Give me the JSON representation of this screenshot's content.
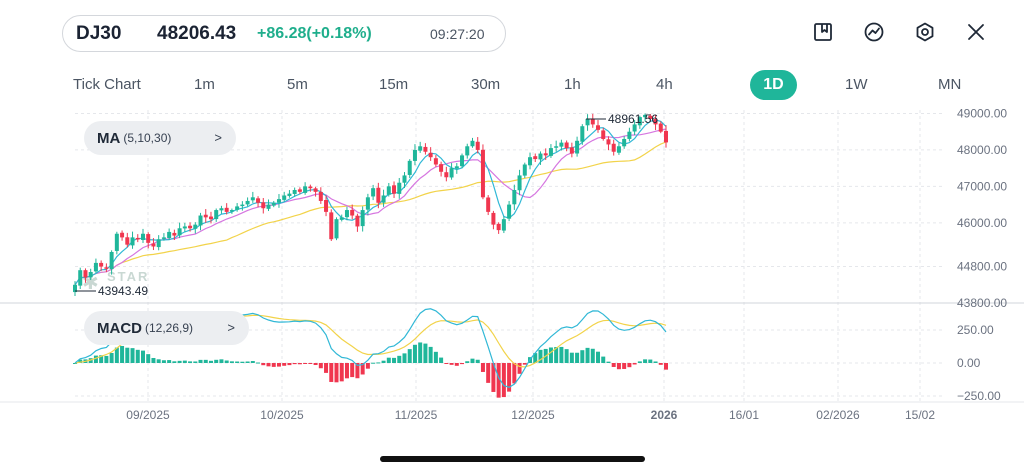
{
  "header": {
    "symbol": "DJ30",
    "price": "48206.43",
    "change": "+86.28(+0.18%)",
    "time": "09:27:20"
  },
  "toolbar": {
    "icons": [
      "bookmark-icon",
      "trend-icon",
      "settings-hex-icon",
      "close-icon"
    ]
  },
  "tabs": [
    "Tick Chart",
    "1m",
    "5m",
    "15m",
    "30m",
    "1h",
    "4h",
    "1D",
    "1W",
    "MN"
  ],
  "active_tab": "1D",
  "indicators": {
    "ma": {
      "name": "MA",
      "params": "(5,10,30)"
    },
    "macd": {
      "name": "MACD",
      "params": "(12,26,9)"
    }
  },
  "watermark": "STAR",
  "annotations": {
    "high": "48961.56",
    "low": "43943.49"
  },
  "colors": {
    "up": "#1fb69a",
    "down": "#f0364f",
    "ma5": "#31b8d6",
    "ma10": "#d676e0",
    "ma30": "#f2d34a",
    "accent": "#1fb69a"
  },
  "chart_data": [
    {
      "type": "candlestick",
      "y_ticks": [
        "49000.00",
        "48000.00",
        "47000.00",
        "46000.00",
        "44800.00",
        "43800.00"
      ],
      "x_ticks": [
        "09/2025",
        "10/2025",
        "11/2025",
        "12/2025",
        "2026",
        "16/01",
        "02/2026",
        "15/02"
      ],
      "ylim": [
        43800,
        49150
      ],
      "series": [
        {
          "name": "MA5",
          "color": "#31b8d6"
        },
        {
          "name": "MA10",
          "color": "#d676e0"
        },
        {
          "name": "MA30",
          "color": "#f2d34a"
        }
      ],
      "close": [
        44300,
        44700,
        44500,
        44650,
        44900,
        44800,
        44750,
        45200,
        45700,
        45600,
        45400,
        45600,
        45550,
        45700,
        45450,
        45350,
        45550,
        45600,
        45750,
        45650,
        45850,
        45900,
        45850,
        45950,
        46200,
        46150,
        46100,
        46350,
        46400,
        46300,
        46350,
        46450,
        46500,
        46600,
        46700,
        46550,
        46400,
        46500,
        46550,
        46650,
        46750,
        46800,
        46900,
        46850,
        47000,
        46950,
        46850,
        46600,
        46300,
        45550,
        46100,
        46150,
        46350,
        46200,
        45900,
        46350,
        46700,
        46950,
        46550,
        46750,
        47000,
        46800,
        47100,
        47300,
        47700,
        48000,
        48100,
        47950,
        47800,
        47600,
        47400,
        47250,
        47500,
        47550,
        47850,
        48100,
        48250,
        48000,
        46700,
        46300,
        45950,
        45800,
        46100,
        46500,
        46900,
        47300,
        47600,
        47800,
        47750,
        47900,
        47850,
        48050,
        48100,
        48200,
        48050,
        47900,
        48250,
        48650,
        48850,
        48700,
        48550,
        48300,
        48150,
        47950,
        48100,
        48300,
        48500,
        48700,
        48900,
        48961,
        48850,
        48700,
        48500,
        48206
      ]
    },
    {
      "type": "bar+line",
      "name": "MACD (12,26,9)",
      "y_ticks": [
        "250.00",
        "0.00",
        "−250.00"
      ],
      "ylim": [
        -300,
        420
      ]
    }
  ]
}
